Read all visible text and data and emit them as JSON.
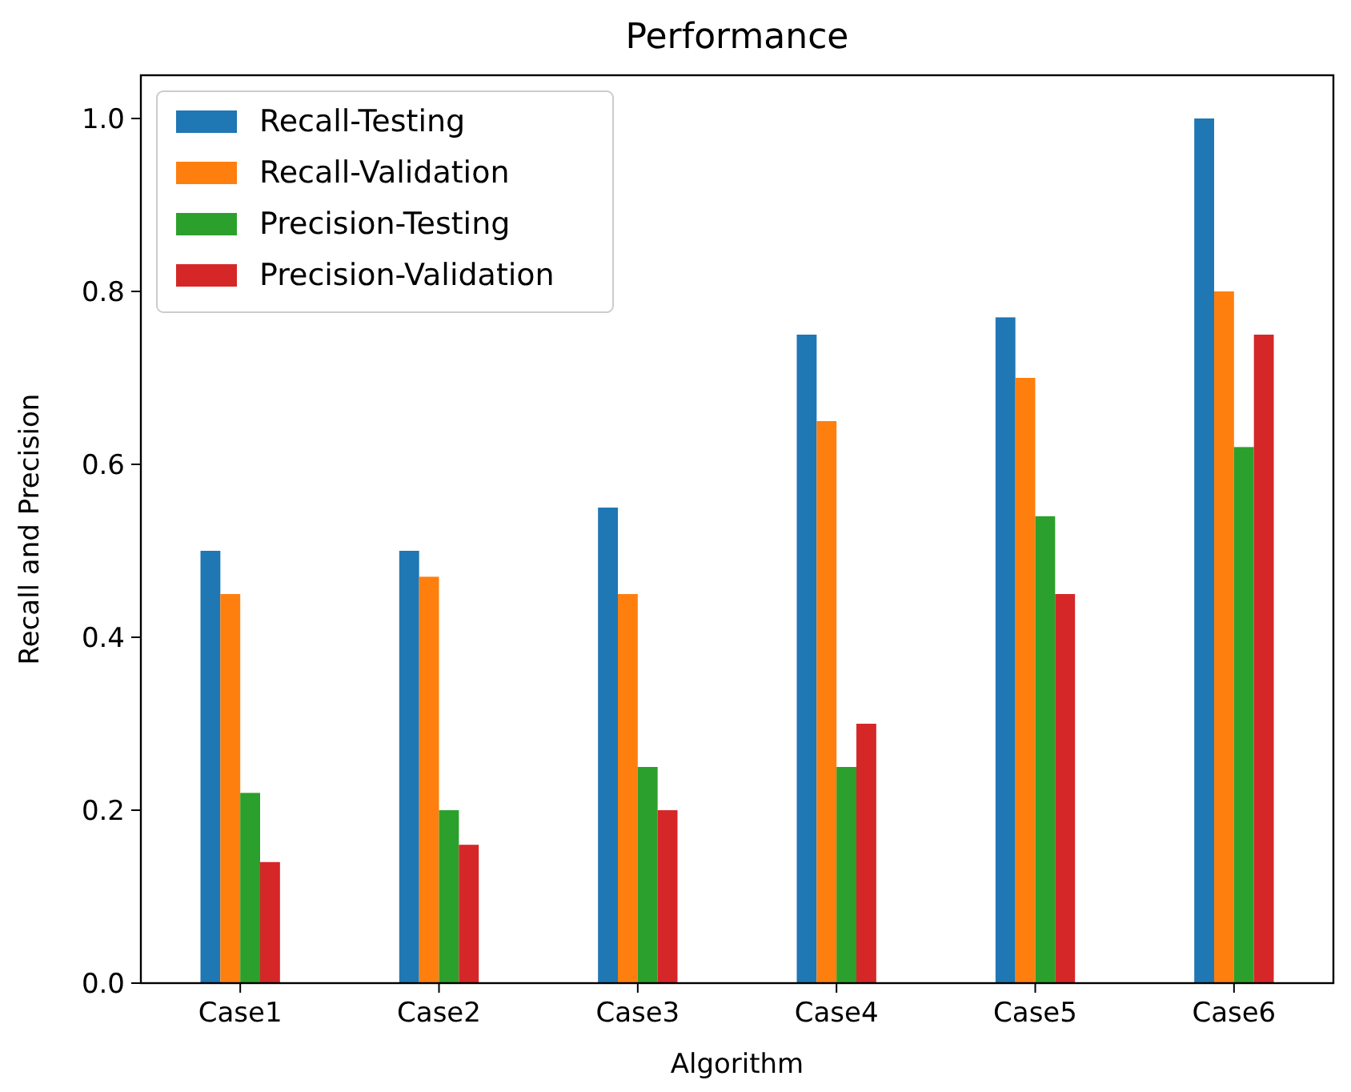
{
  "chart_data": {
    "type": "bar",
    "title": "Performance",
    "xlabel": "Algorithm",
    "ylabel": "Recall and Precision",
    "categories": [
      "Case1",
      "Case2",
      "Case3",
      "Case4",
      "Case5",
      "Case6"
    ],
    "series": [
      {
        "name": "Recall-Testing",
        "color": "#1f77b4",
        "values": [
          0.5,
          0.5,
          0.55,
          0.75,
          0.77,
          1.0
        ]
      },
      {
        "name": "Recall-Validation",
        "color": "#ff7f0e",
        "values": [
          0.45,
          0.47,
          0.45,
          0.65,
          0.7,
          0.8
        ]
      },
      {
        "name": "Precision-Testing",
        "color": "#2ca02c",
        "values": [
          0.22,
          0.2,
          0.25,
          0.25,
          0.54,
          0.62
        ]
      },
      {
        "name": "Precision-Validation",
        "color": "#d62728",
        "values": [
          0.14,
          0.16,
          0.2,
          0.3,
          0.45,
          0.75
        ]
      }
    ],
    "ylim": [
      0,
      1.05
    ],
    "yticks": [
      {
        "value": 0,
        "label": "0.0"
      },
      {
        "value": 0.2,
        "label": "0.2"
      },
      {
        "value": 0.4,
        "label": "0.4"
      },
      {
        "value": 0.6,
        "label": "0.6"
      },
      {
        "value": 0.8,
        "label": "0.8"
      },
      {
        "value": 1,
        "label": "1.0"
      }
    ],
    "legend": "top left",
    "grid": false
  }
}
